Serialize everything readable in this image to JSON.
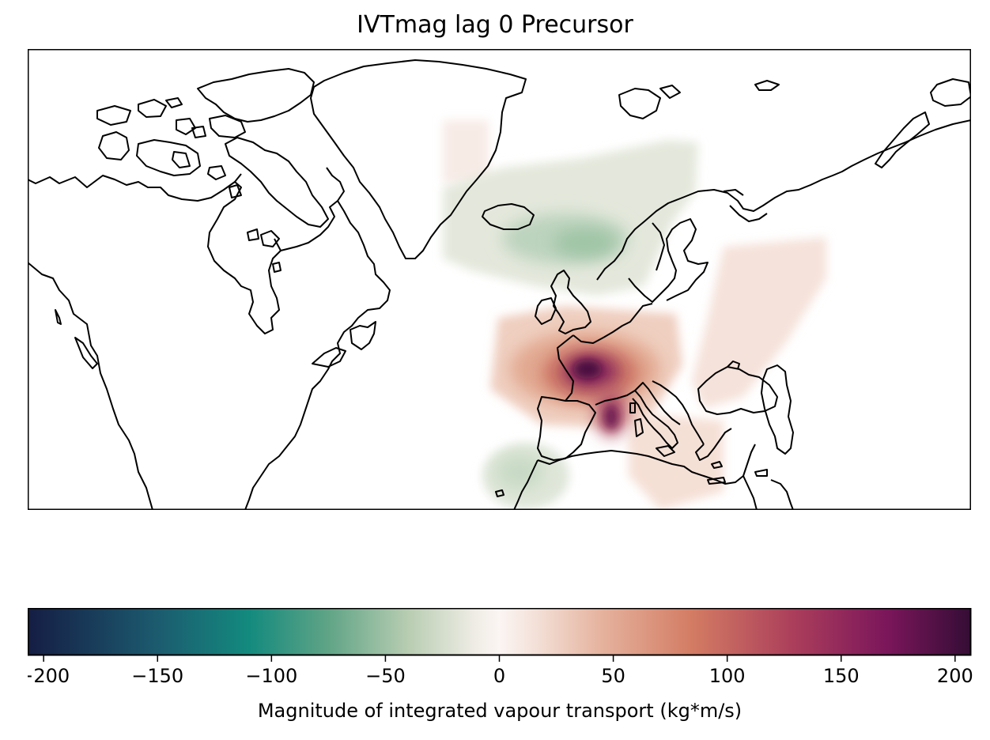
{
  "title": "IVTmag lag 0 Precursor",
  "colorbar": {
    "label": "Magnitude of integrated vapour transport (kg*m/s)",
    "range": [
      -207,
      207
    ],
    "ticks": [
      -200,
      -150,
      -100,
      -50,
      0,
      50,
      100,
      150,
      200
    ],
    "tick_labels": [
      "−200",
      "−150",
      "−100",
      "−50",
      "0",
      "50",
      "100",
      "150",
      "200"
    ],
    "colormap": "curl",
    "color_stops": [
      {
        "value": -207,
        "color": "#151d44"
      },
      {
        "value": -150,
        "color": "#1c5b6f"
      },
      {
        "value": -110,
        "color": "#138a7e"
      },
      {
        "value": -75,
        "color": "#60a486"
      },
      {
        "value": -40,
        "color": "#b8cdb2"
      },
      {
        "value": -10,
        "color": "#f0ede6"
      },
      {
        "value": 0,
        "color": "#fbf5f3"
      },
      {
        "value": 15,
        "color": "#f4e2da"
      },
      {
        "value": 45,
        "color": "#e5b29d"
      },
      {
        "value": 85,
        "color": "#d37b63"
      },
      {
        "value": 130,
        "color": "#aa3d5b"
      },
      {
        "value": 170,
        "color": "#7b165b"
      },
      {
        "value": 207,
        "color": "#340d35"
      }
    ]
  },
  "map_data": {
    "projection": "PlateCarree",
    "features": [
      "coastlines"
    ],
    "extent_lon": [
      -130,
      70
    ],
    "extent_lat": [
      10,
      85
    ],
    "anomalies": [
      {
        "region": "Greenland Sea",
        "value": 8
      },
      {
        "region": "Norwegian Sea",
        "value": -35
      },
      {
        "region": "Western Europe / France",
        "value": 195
      },
      {
        "region": "Tyrrhenian Sea",
        "value": 120
      },
      {
        "region": "Eastern Europe / Russia",
        "value": 22
      },
      {
        "region": "Eastern Mediterranean",
        "value": 30
      },
      {
        "region": "Subtropical NE Atlantic",
        "value": -28
      }
    ]
  }
}
